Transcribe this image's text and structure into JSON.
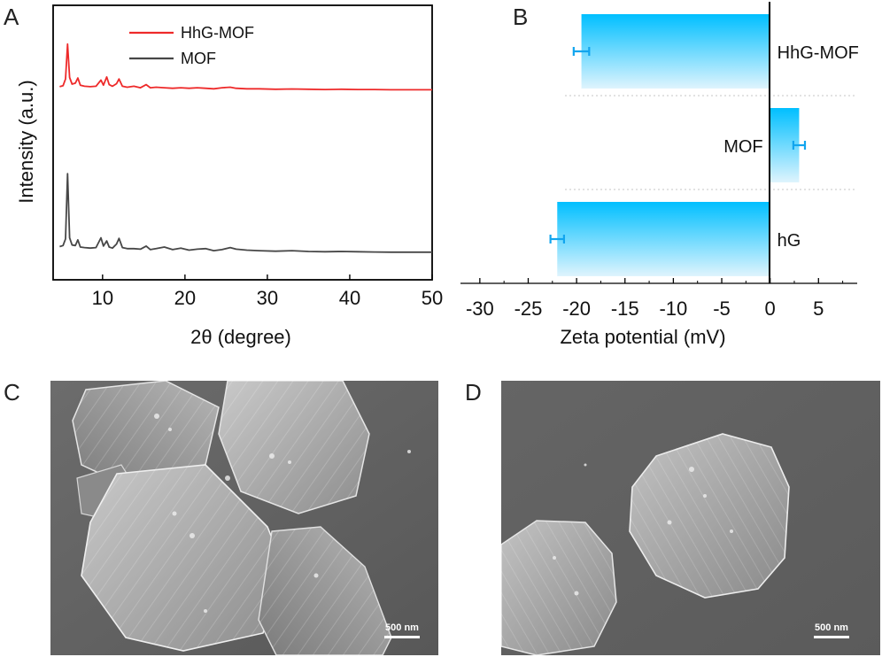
{
  "panels": {
    "a": "A",
    "b": "B",
    "c": "C",
    "d": "D"
  },
  "chart_data": [
    {
      "type": "line",
      "xlabel": "2θ (degree)",
      "ylabel": "Intensity (a.u.)",
      "xlim": [
        4,
        50
      ],
      "xticks": [
        "10",
        "20",
        "30",
        "40",
        "50"
      ],
      "grid": false,
      "legend_position": "top-center",
      "series": [
        {
          "name": "HhG-MOF",
          "color": "#ee2a2a",
          "x": [
            4.8,
            5.2,
            5.5,
            5.75,
            6.0,
            6.3,
            6.7,
            7.0,
            7.3,
            7.8,
            8.5,
            9.2,
            9.8,
            10.1,
            10.5,
            10.8,
            11.2,
            11.7,
            12.0,
            12.4,
            13.0,
            13.8,
            14.6,
            15.3,
            15.8,
            16.5,
            17.5,
            18.5,
            19.5,
            20.5,
            21.5,
            22.5,
            23.5,
            24.5,
            25.5,
            26.2,
            27.5,
            29.0,
            31.0,
            33.0,
            35.0,
            37.0,
            39.0,
            41.0,
            43.0,
            45.0,
            47.0,
            49.0,
            50.0
          ],
          "y": [
            0.7,
            0.9,
            2.2,
            9.0,
            2.5,
            1.2,
            1.4,
            2.4,
            1.0,
            0.8,
            0.7,
            0.8,
            2.0,
            1.0,
            2.6,
            1.1,
            0.8,
            1.3,
            2.2,
            0.8,
            0.6,
            0.8,
            0.5,
            1.1,
            0.5,
            0.6,
            0.5,
            0.4,
            0.5,
            0.4,
            0.5,
            0.4,
            0.3,
            0.5,
            0.6,
            0.4,
            0.3,
            0.3,
            0.2,
            0.25,
            0.2,
            0.15,
            0.2,
            0.15,
            0.15,
            0.1,
            0.1,
            0.1,
            0.1
          ]
        },
        {
          "name": "MOF",
          "color": "#474747",
          "x": [
            4.8,
            5.2,
            5.5,
            5.75,
            6.0,
            6.3,
            6.7,
            7.0,
            7.3,
            7.8,
            8.5,
            9.2,
            9.8,
            10.1,
            10.5,
            10.8,
            11.2,
            11.7,
            12.0,
            12.4,
            13.0,
            13.8,
            14.6,
            15.3,
            15.8,
            16.5,
            17.5,
            18.5,
            19.5,
            20.5,
            21.5,
            22.5,
            23.5,
            24.5,
            25.5,
            26.2,
            27.5,
            29.0,
            31.0,
            33.0,
            35.0,
            37.0,
            39.0,
            41.0,
            43.0,
            45.0,
            47.0,
            49.0,
            50.0
          ],
          "y": [
            1.3,
            1.5,
            2.8,
            15.5,
            3.0,
            1.6,
            1.5,
            2.6,
            1.2,
            1.1,
            1.0,
            1.1,
            3.0,
            1.4,
            2.4,
            1.2,
            1.0,
            1.8,
            2.9,
            1.1,
            0.9,
            0.9,
            0.8,
            1.4,
            0.7,
            0.9,
            1.2,
            0.7,
            1.0,
            0.6,
            0.8,
            0.9,
            0.5,
            0.7,
            1.1,
            0.8,
            0.6,
            0.5,
            0.4,
            0.5,
            0.35,
            0.3,
            0.35,
            0.3,
            0.25,
            0.2,
            0.2,
            0.2,
            0.2
          ]
        }
      ]
    },
    {
      "type": "bar",
      "orientation": "horizontal",
      "xlabel": "Zeta potential (mV)",
      "xlim": [
        -32,
        9
      ],
      "xticks": [
        "-30",
        "-25",
        "-20",
        "-15",
        "-10",
        "-5",
        "0",
        "5"
      ],
      "categories": [
        "HhG-MOF",
        "MOF",
        "hG"
      ],
      "values": [
        -19.5,
        3.0,
        -22.0
      ],
      "errors": [
        0.8,
        0.6,
        0.7
      ],
      "grid": true,
      "colors": {
        "bar_top": "#00bfff",
        "bar_bottom": "#dff4fd",
        "errorbar": "#12a5ee"
      }
    }
  ],
  "sem": {
    "c": {
      "scalebar": "500 nm"
    },
    "d": {
      "scalebar": "500 nm"
    }
  }
}
